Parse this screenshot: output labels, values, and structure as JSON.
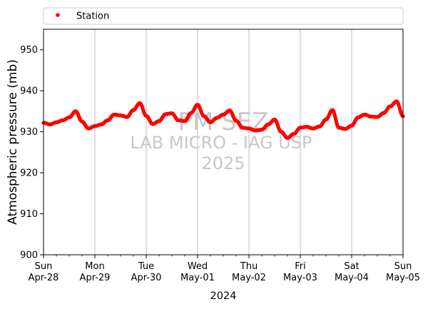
{
  "chart_data": {
    "type": "scatter",
    "xlabel": "2024",
    "ylabel": "Atmospheric pressure (mb)",
    "ylim": [
      900,
      955
    ],
    "yticks": [
      900,
      910,
      920,
      930,
      940,
      950
    ],
    "xlim": [
      "2024-04-28T00:00",
      "2024-05-05T00:00"
    ],
    "xticks": [
      {
        "date": "2024-04-28",
        "day": "Sun",
        "label": "Apr-28"
      },
      {
        "date": "2024-04-29",
        "day": "Mon",
        "label": "Apr-29"
      },
      {
        "date": "2024-04-30",
        "day": "Tue",
        "label": "Apr-30"
      },
      {
        "date": "2024-05-01",
        "day": "Wed",
        "label": "May-01"
      },
      {
        "date": "2024-05-02",
        "day": "Thu",
        "label": "May-02"
      },
      {
        "date": "2024-05-03",
        "day": "Fri",
        "label": "May-03"
      },
      {
        "date": "2024-05-04",
        "day": "Sat",
        "label": "May-04"
      },
      {
        "date": "2024-05-05",
        "day": "Sun",
        "label": "May-05"
      }
    ],
    "grid": "vertical",
    "legend_position": "top",
    "series": [
      {
        "name": "Station",
        "color": "#ff0000",
        "x": [
          "2024-04-28T00:00",
          "2024-04-28T03:00",
          "2024-04-28T06:00",
          "2024-04-28T09:00",
          "2024-04-28T12:00",
          "2024-04-28T15:00",
          "2024-04-28T18:00",
          "2024-04-28T21:00",
          "2024-04-29T00:00",
          "2024-04-29T03:00",
          "2024-04-29T06:00",
          "2024-04-29T09:00",
          "2024-04-29T12:00",
          "2024-04-29T15:00",
          "2024-04-29T18:00",
          "2024-04-29T21:00",
          "2024-04-30T00:00",
          "2024-04-30T03:00",
          "2024-04-30T06:00",
          "2024-04-30T09:00",
          "2024-04-30T12:00",
          "2024-04-30T15:00",
          "2024-04-30T18:00",
          "2024-04-30T21:00",
          "2024-05-01T00:00",
          "2024-05-01T03:00",
          "2024-05-01T06:00",
          "2024-05-01T09:00",
          "2024-05-01T12:00",
          "2024-05-01T15:00",
          "2024-05-01T18:00",
          "2024-05-01T21:00",
          "2024-05-02T00:00",
          "2024-05-02T03:00",
          "2024-05-02T06:00",
          "2024-05-02T09:00",
          "2024-05-02T12:00",
          "2024-05-02T15:00",
          "2024-05-02T18:00",
          "2024-05-02T21:00",
          "2024-05-03T00:00",
          "2024-05-03T03:00",
          "2024-05-03T06:00",
          "2024-05-03T09:00",
          "2024-05-03T12:00",
          "2024-05-03T15:00",
          "2024-05-03T18:00",
          "2024-05-03T21:00",
          "2024-05-04T00:00",
          "2024-05-04T03:00",
          "2024-05-04T06:00",
          "2024-05-04T09:00",
          "2024-05-04T12:00",
          "2024-05-04T15:00",
          "2024-05-04T18:00",
          "2024-05-04T21:00",
          "2024-05-05T00:00"
        ],
        "y": [
          932.2,
          931.8,
          932.3,
          932.8,
          933.5,
          935,
          932.5,
          930.8,
          931.4,
          931.8,
          932.8,
          934.2,
          934.0,
          933.6,
          935.3,
          937.0,
          933.9,
          931.9,
          932.6,
          934.3,
          934.5,
          932.8,
          932.6,
          934.6,
          936.6,
          933.8,
          932.3,
          933.4,
          934.2,
          935.2,
          932.7,
          931.0,
          930.8,
          930.3,
          930.5,
          931.8,
          933,
          930.0,
          928.5,
          929.5,
          931.0,
          931.2,
          930.8,
          931.3,
          933,
          935.3,
          931.0,
          930.7,
          931.5,
          933.5,
          934.2,
          933.7,
          933.6,
          934.6,
          936.2,
          937.4,
          933.8
        ]
      }
    ],
    "watermark": {
      "line1": "PM SEZ",
      "line2": "LAB MICRO - IAG USP",
      "line3": "2025"
    }
  }
}
